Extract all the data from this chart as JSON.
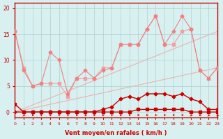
{
  "title": "",
  "xlabel": "Vent moyen/en rafales ( km/h )",
  "ylabel": "",
  "bg_color": "#d8f0f0",
  "grid_color": "#b0d0d0",
  "xlim": [
    0,
    23
  ],
  "ylim": [
    -1,
    21
  ],
  "yticks": [
    0,
    5,
    10,
    15,
    20
  ],
  "xticks": [
    0,
    1,
    2,
    3,
    4,
    5,
    6,
    7,
    8,
    9,
    10,
    11,
    12,
    13,
    14,
    15,
    16,
    17,
    18,
    19,
    20,
    21,
    22,
    23
  ],
  "line1_x": [
    0,
    1,
    2,
    3,
    4,
    5,
    6,
    7,
    8,
    9,
    10,
    11,
    12,
    13,
    14,
    15,
    16,
    17,
    18,
    19,
    20,
    21,
    22,
    23
  ],
  "line1_y": [
    15.5,
    8.5,
    5.0,
    5.5,
    5.5,
    5.5,
    3.0,
    6.5,
    6.5,
    6.5,
    8.5,
    8.5,
    13.0,
    13.0,
    13.0,
    16.0,
    18.5,
    13.0,
    13.0,
    15.5,
    16.0,
    8.0,
    6.5,
    8.5
  ],
  "line1_color": "#f0a0a0",
  "line1_marker": "s",
  "line1_ms": 2.5,
  "line2_x": [
    0,
    1,
    2,
    3,
    4,
    5,
    6,
    7,
    8,
    9,
    10,
    11,
    12,
    13,
    14,
    15,
    16,
    17,
    18,
    19,
    20,
    21,
    22,
    23
  ],
  "line2_y": [
    15.5,
    8.0,
    5.0,
    5.5,
    11.5,
    10.0,
    3.5,
    6.5,
    8.0,
    6.5,
    8.0,
    8.5,
    13.0,
    13.0,
    13.0,
    16.0,
    18.5,
    13.0,
    15.5,
    18.5,
    16.0,
    8.0,
    6.5,
    8.5
  ],
  "line2_color": "#f08080",
  "line2_marker": "D",
  "line2_ms": 2.5,
  "line3_x": [
    0,
    1,
    2,
    3,
    4,
    5,
    6,
    7,
    8,
    9,
    10,
    11,
    12,
    13,
    14,
    15,
    16,
    17,
    18,
    19,
    20,
    21,
    22,
    23
  ],
  "line3_y": [
    0,
    0,
    0,
    0,
    0,
    0,
    0,
    0,
    0,
    0,
    0.5,
    1.0,
    2.5,
    3.0,
    2.5,
    3.5,
    3.5,
    3.5,
    3.0,
    3.5,
    2.5,
    2.0,
    0.5,
    0.5
  ],
  "line3_color": "#cc0000",
  "line3_marker": "D",
  "line3_ms": 2.5,
  "line4_x": [
    0,
    1,
    2,
    3,
    4,
    5,
    6,
    7,
    8,
    9,
    10,
    11,
    12,
    13,
    14,
    15,
    16,
    17,
    18,
    19,
    20,
    21,
    22,
    23
  ],
  "line4_y": [
    1.5,
    0,
    0,
    0,
    0,
    0,
    0,
    0,
    0,
    0,
    0,
    0,
    0,
    0,
    0.5,
    0.5,
    0.5,
    0.5,
    0.5,
    0.5,
    0,
    0,
    0,
    0
  ],
  "line4_color": "#cc0000",
  "line4_marker": "s",
  "line4_ms": 2.5,
  "line5_x": [
    0,
    23
  ],
  "line5_y": [
    0,
    8.5
  ],
  "line5_color": "#f0b0b0",
  "line6_x": [
    0,
    23
  ],
  "line6_y": [
    0,
    15.5
  ],
  "line6_color": "#f0b0b0",
  "axis_color": "#cc0000",
  "tick_color": "#cc0000",
  "label_color": "#cc0000",
  "arrows_x": [
    0,
    1,
    2,
    3,
    4,
    5,
    6,
    7,
    8,
    9,
    10,
    11,
    12,
    13,
    14,
    15,
    16,
    17,
    18,
    19,
    20,
    21,
    22,
    23
  ],
  "arrows_angles": [
    225,
    225,
    200,
    180,
    195,
    195,
    195,
    195,
    210,
    195,
    195,
    195,
    195,
    195,
    195,
    195,
    195,
    195,
    195,
    195,
    225,
    210,
    225,
    225
  ]
}
